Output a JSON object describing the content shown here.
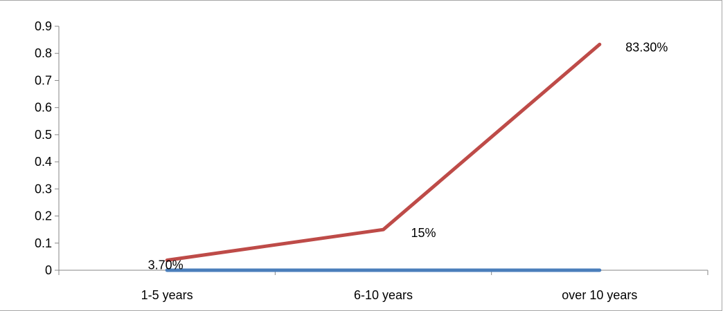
{
  "chart_data": {
    "type": "line",
    "categories": [
      "1-5 years",
      "6-10 years",
      "over 10 years"
    ],
    "series": [
      {
        "values": [
          0,
          0,
          0
        ],
        "color": "#4a7ebb",
        "data_labels": [
          "",
          "",
          ""
        ]
      },
      {
        "values": [
          0.037,
          0.15,
          0.833
        ],
        "color": "#be4b48",
        "data_labels": [
          "3.70%",
          "15%",
          "83.30%"
        ]
      }
    ],
    "y_ticks": [
      "0",
      "0.1",
      "0.2",
      "0.3",
      "0.4",
      "0.5",
      "0.6",
      "0.7",
      "0.8",
      "0.9"
    ],
    "ylim": [
      0,
      0.9
    ],
    "legend": "none",
    "grid": false
  }
}
